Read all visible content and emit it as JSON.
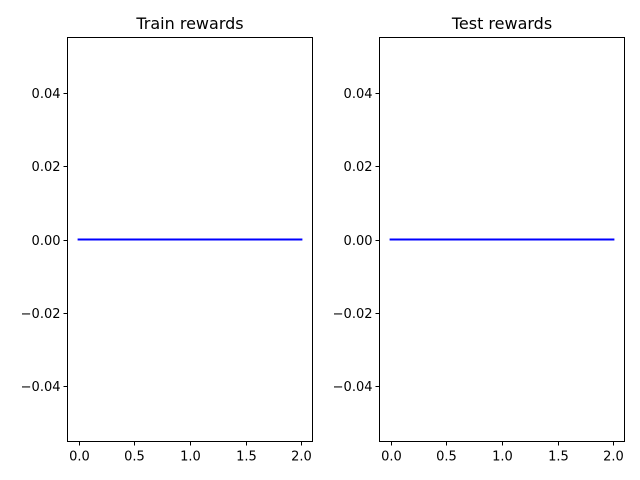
{
  "chart_data": [
    {
      "type": "line",
      "title": "Train rewards",
      "xlabel": "",
      "ylabel": "",
      "xlim": [
        -0.1,
        2.1
      ],
      "ylim": [
        -0.055,
        0.055
      ],
      "xticks": [
        0.0,
        0.5,
        1.0,
        1.5,
        2.0
      ],
      "xtick_labels": [
        "0.0",
        "0.5",
        "1.0",
        "1.5",
        "2.0"
      ],
      "yticks": [
        -0.04,
        -0.02,
        0.0,
        0.02,
        0.04
      ],
      "ytick_labels": [
        "−0.04",
        "−0.02",
        "0.00",
        "0.02",
        "0.04"
      ],
      "grid": false,
      "series": [
        {
          "color": "#0000ff",
          "x": [
            0,
            1,
            2
          ],
          "y": [
            0,
            0,
            0
          ]
        }
      ]
    },
    {
      "type": "line",
      "title": "Test rewards",
      "xlabel": "",
      "ylabel": "",
      "xlim": [
        -0.1,
        2.1
      ],
      "ylim": [
        -0.055,
        0.055
      ],
      "xticks": [
        0.0,
        0.5,
        1.0,
        1.5,
        2.0
      ],
      "xtick_labels": [
        "0.0",
        "0.5",
        "1.0",
        "1.5",
        "2.0"
      ],
      "yticks": [
        -0.04,
        -0.02,
        0.0,
        0.02,
        0.04
      ],
      "ytick_labels": [
        "−0.04",
        "−0.02",
        "0.00",
        "0.02",
        "0.04"
      ],
      "grid": false,
      "series": [
        {
          "color": "#0000ff",
          "x": [
            0,
            1,
            2
          ],
          "y": [
            0,
            0,
            0
          ]
        }
      ]
    }
  ]
}
